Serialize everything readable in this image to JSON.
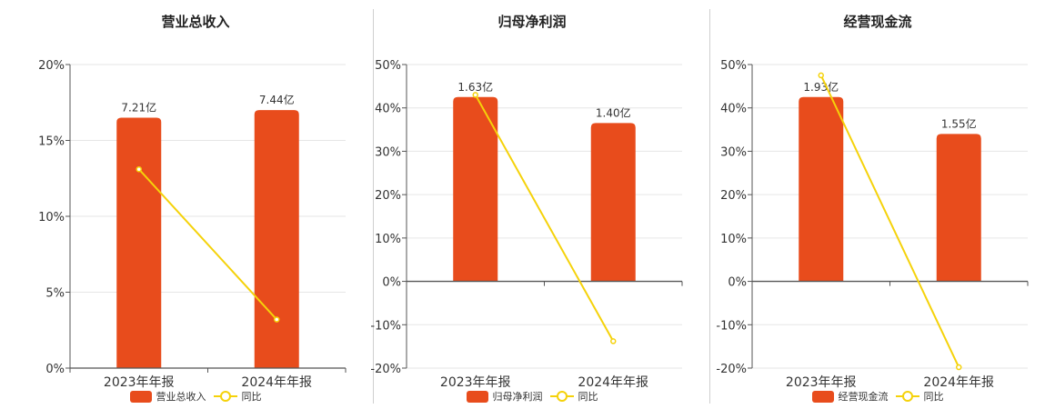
{
  "colors": {
    "bar": "#e84c1c",
    "line": "#f5d20a",
    "axis": "#555555",
    "grid": "#e6e6e6"
  },
  "legend_line_label": "同比",
  "chart_data": [
    {
      "type": "bar",
      "title": "营业总收入",
      "categories": [
        "2023年年报",
        "2024年年报"
      ],
      "bar_series_name": "营业总收入",
      "bar_labels": [
        "7.21亿",
        "7.44亿"
      ],
      "bar_values_pct": [
        16.5,
        17.0
      ],
      "line_series_name": "同比",
      "line_values_pct": [
        13.1,
        3.2
      ],
      "ylim": [
        0,
        20
      ],
      "yticks": [
        0,
        5,
        10,
        15,
        20
      ],
      "ytick_labels": [
        "0%",
        "5%",
        "10%",
        "15%",
        "20%"
      ]
    },
    {
      "type": "bar",
      "title": "归母净利润",
      "categories": [
        "2023年年报",
        "2024年年报"
      ],
      "bar_series_name": "归母净利润",
      "bar_labels": [
        "1.63亿",
        "1.40亿"
      ],
      "bar_values_pct": [
        42.5,
        36.5
      ],
      "line_series_name": "同比",
      "line_values_pct": [
        43.0,
        -13.8
      ],
      "ylim": [
        -20,
        50
      ],
      "yticks": [
        -20,
        -10,
        0,
        10,
        20,
        30,
        40,
        50
      ],
      "ytick_labels": [
        "-20%",
        "-10%",
        "0%",
        "10%",
        "20%",
        "30%",
        "40%",
        "50%"
      ]
    },
    {
      "type": "bar",
      "title": "经营现金流",
      "categories": [
        "2023年年报",
        "2024年年报"
      ],
      "bar_series_name": "经营现金流",
      "bar_labels": [
        "1.93亿",
        "1.55亿"
      ],
      "bar_values_pct": [
        42.5,
        34.0
      ],
      "line_series_name": "同比",
      "line_values_pct": [
        47.5,
        -19.8
      ],
      "ylim": [
        -20,
        50
      ],
      "yticks": [
        -20,
        -10,
        0,
        10,
        20,
        30,
        40,
        50
      ],
      "ytick_labels": [
        "-20%",
        "-10%",
        "0%",
        "10%",
        "20%",
        "30%",
        "40%",
        "50%"
      ]
    }
  ]
}
